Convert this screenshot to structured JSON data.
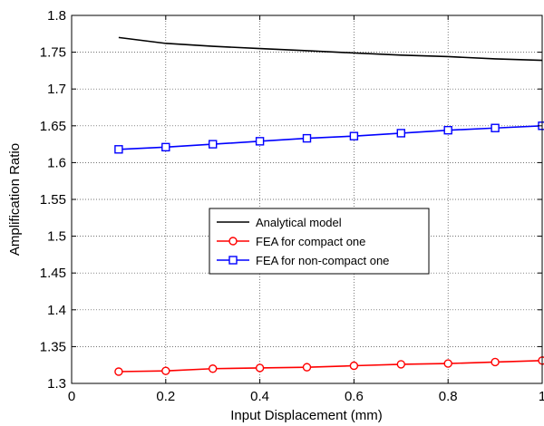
{
  "chart_data": {
    "type": "line",
    "title": "",
    "xlabel": "Input Displacement (mm)",
    "ylabel": "Amplification Ratio",
    "xlim": [
      0,
      1
    ],
    "ylim": [
      1.3,
      1.8
    ],
    "xticks": [
      0,
      0.2,
      0.4,
      0.6,
      0.8,
      1
    ],
    "xtick_labels": [
      "0",
      "0.2",
      "0.4",
      "0.6",
      "0.8",
      "1"
    ],
    "yticks": [
      1.3,
      1.35,
      1.4,
      1.45,
      1.5,
      1.55,
      1.6,
      1.65,
      1.7,
      1.75,
      1.8
    ],
    "ytick_labels": [
      "1.3",
      "1.35",
      "1.4",
      "1.45",
      "1.5",
      "1.55",
      "1.6",
      "1.65",
      "1.7",
      "1.75",
      "1.8"
    ],
    "grid": true,
    "legend_position": "center",
    "series": [
      {
        "name": "Analytical model",
        "color": "#000000",
        "marker": "none",
        "x": [
          0.1,
          0.2,
          0.3,
          0.4,
          0.5,
          0.6,
          0.7,
          0.8,
          0.9,
          1.0
        ],
        "y": [
          1.77,
          1.762,
          1.758,
          1.755,
          1.752,
          1.749,
          1.746,
          1.744,
          1.741,
          1.739
        ]
      },
      {
        "name": "FEA for compact one",
        "color": "#ff0000",
        "marker": "circle",
        "x": [
          0.1,
          0.2,
          0.3,
          0.4,
          0.5,
          0.6,
          0.7,
          0.8,
          0.9,
          1.0
        ],
        "y": [
          1.316,
          1.317,
          1.32,
          1.321,
          1.322,
          1.324,
          1.326,
          1.327,
          1.329,
          1.331
        ]
      },
      {
        "name": "FEA for non-compact one",
        "color": "#0000ff",
        "marker": "square",
        "x": [
          0.1,
          0.2,
          0.3,
          0.4,
          0.5,
          0.6,
          0.7,
          0.8,
          0.9,
          1.0
        ],
        "y": [
          1.618,
          1.621,
          1.625,
          1.629,
          1.633,
          1.636,
          1.64,
          1.644,
          1.647,
          1.65
        ]
      }
    ]
  }
}
